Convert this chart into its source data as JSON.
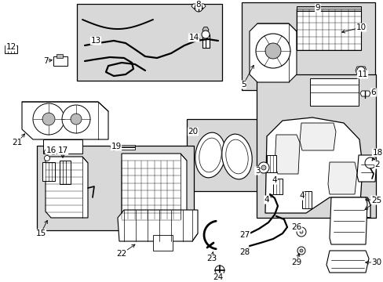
{
  "bg_color": "#ffffff",
  "line_color": "#000000",
  "text_color": "#000000",
  "figsize": [
    4.89,
    3.6
  ],
  "dpi": 100,
  "gray_fill": "#d8d8d8",
  "white_fill": "#ffffff",
  "light_gray": "#bbbbbb"
}
